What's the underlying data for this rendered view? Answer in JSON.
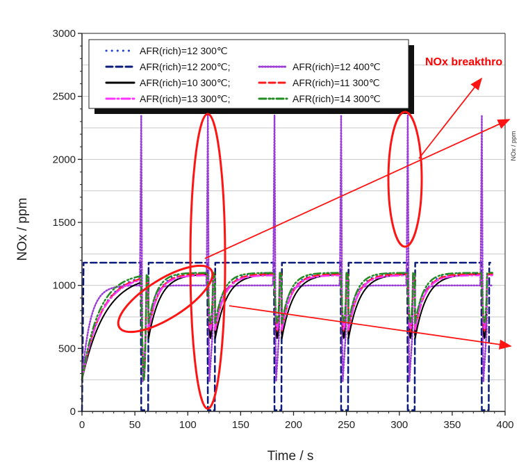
{
  "chart_data": {
    "type": "line",
    "title": "",
    "xlabel": "Time / s",
    "ylabel": "NOx / ppm",
    "xlim": [
      0,
      400
    ],
    "ylim": [
      0,
      3000
    ],
    "xticks": [
      "0",
      "50",
      "100",
      "150",
      "200",
      "250",
      "300",
      "350",
      "400"
    ],
    "yticks": [
      "0",
      "500",
      "1000",
      "1500",
      "2000",
      "2500",
      "3000"
    ],
    "grid": true,
    "legend_position": "top-left",
    "cycle_start_times": [
      0,
      63,
      126,
      189,
      252,
      315
    ],
    "rich_pulse_times": [
      56,
      119,
      182,
      245,
      308,
      378
    ],
    "series": [
      {
        "name": "AFR(rich)=12 300℃",
        "color": "#1f3fd6",
        "dash": "dotted-round",
        "plateau_ppm": 1100,
        "time_constant_s": 9,
        "dip_ppm": 650
      },
      {
        "name": "AFR(rich)=12 200℃;",
        "color": "#0a1a7a",
        "dash": "dash",
        "plateau_ppm": 1180,
        "time_constant_s": 1,
        "dip_ppm": 10
      },
      {
        "name": "AFR(rich)=12 400℃",
        "color": "#9a3bd8",
        "dash": "dotted",
        "plateau_ppm": 1000,
        "time_constant_s": 4,
        "spike_ppm": 2350
      },
      {
        "name": "AFR(rich)=10 300℃;",
        "color": "#000000",
        "dash": "solid",
        "plateau_ppm": 1090,
        "time_constant_s": 11,
        "dip_ppm": 580
      },
      {
        "name": "AFR(rich)=11 300℃",
        "color": "#ff1a1a",
        "dash": "dash",
        "plateau_ppm": 1090,
        "time_constant_s": 9,
        "dip_ppm": 640
      },
      {
        "name": "AFR(rich)=13 300℃;",
        "color": "#ff33ff",
        "dash": "dashdot",
        "plateau_ppm": 1080,
        "time_constant_s": 9,
        "dip_ppm": 650
      },
      {
        "name": "AFR(rich)=14 300℃",
        "color": "#228b22",
        "dash": "dashdotdot",
        "plateau_ppm": 1100,
        "time_constant_s": 8,
        "dip_ppm": 700
      }
    ],
    "annotations": [
      {
        "text": "NOx breakthro",
        "color": "#ff0000"
      }
    ],
    "side_text": "NOx / ppm"
  }
}
